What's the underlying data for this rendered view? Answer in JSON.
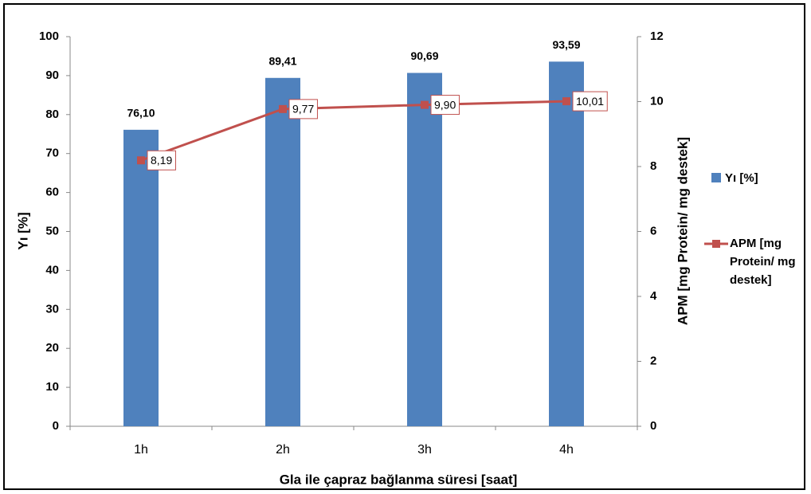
{
  "chart_data": {
    "type": "bar",
    "categories": [
      "1h",
      "2h",
      "3h",
      "4h"
    ],
    "series": [
      {
        "name": "Yı [%]",
        "type": "bar",
        "color": "#4f81bd",
        "values": [
          76.1,
          89.41,
          90.69,
          93.59
        ],
        "value_labels": [
          "76,10",
          "89,41",
          "90,69",
          "93,59"
        ]
      },
      {
        "name": "APM [mg Protein/ mg destek]",
        "type": "line",
        "axis": "y2",
        "color": "#c0504d",
        "values": [
          8.19,
          9.77,
          9.9,
          10.01
        ],
        "value_labels": [
          "8,19",
          "9,77",
          "9,90",
          "10,01"
        ]
      }
    ],
    "xlabel": "Gla ile çapraz bağlanma süresi [saat]",
    "ylabel": "Yı [%]",
    "y2label": "APM [mg Protein/ mg destek]",
    "ylim": [
      0,
      100
    ],
    "yticks": [
      0,
      10,
      20,
      30,
      40,
      50,
      60,
      70,
      80,
      90,
      100
    ],
    "y2lim": [
      0,
      12
    ],
    "y2ticks": [
      0,
      2,
      4,
      6,
      8,
      10,
      12
    ],
    "legend": "right",
    "grid": false
  }
}
